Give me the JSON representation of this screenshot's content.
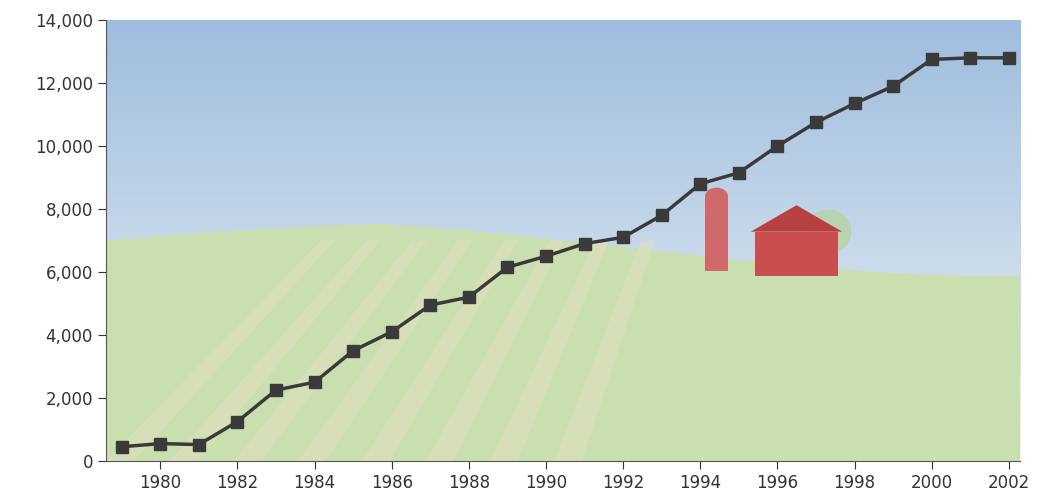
{
  "chart_data": {
    "type": "line",
    "x": [
      1979,
      1980,
      1981,
      1982,
      1983,
      1984,
      1985,
      1986,
      1987,
      1988,
      1989,
      1990,
      1991,
      1992,
      1993,
      1994,
      1995,
      1996,
      1997,
      1998,
      1999,
      2000,
      2001,
      2002
    ],
    "values": [
      450,
      550,
      520,
      1250,
      2250,
      2500,
      3500,
      4100,
      4950,
      5200,
      6150,
      6500,
      6900,
      7100,
      7800,
      8800,
      9150,
      10000,
      10750,
      11350,
      11900,
      12750,
      12800,
      12800
    ],
    "color": "#3a3a3a",
    "marker": "square",
    "line_style": "solid",
    "xlim": [
      1978.6,
      2002.3
    ],
    "xticks": [
      1980,
      1982,
      1984,
      1986,
      1988,
      1990,
      1992,
      1994,
      1996,
      1998,
      2000,
      2002
    ],
    "ylim": [
      0,
      14000
    ],
    "yticks": [
      0,
      {
        "value": 2000,
        "label": "2,000"
      },
      {
        "value": 4000,
        "label": "4,000"
      },
      {
        "value": 6000,
        "label": "6,000"
      },
      {
        "value": 8000,
        "label": "8,000"
      },
      {
        "value": 10000,
        "label": "10,000"
      },
      {
        "value": 12000,
        "label": "12,000"
      },
      {
        "value": 14000,
        "label": "14,000"
      }
    ],
    "grid": false
  }
}
